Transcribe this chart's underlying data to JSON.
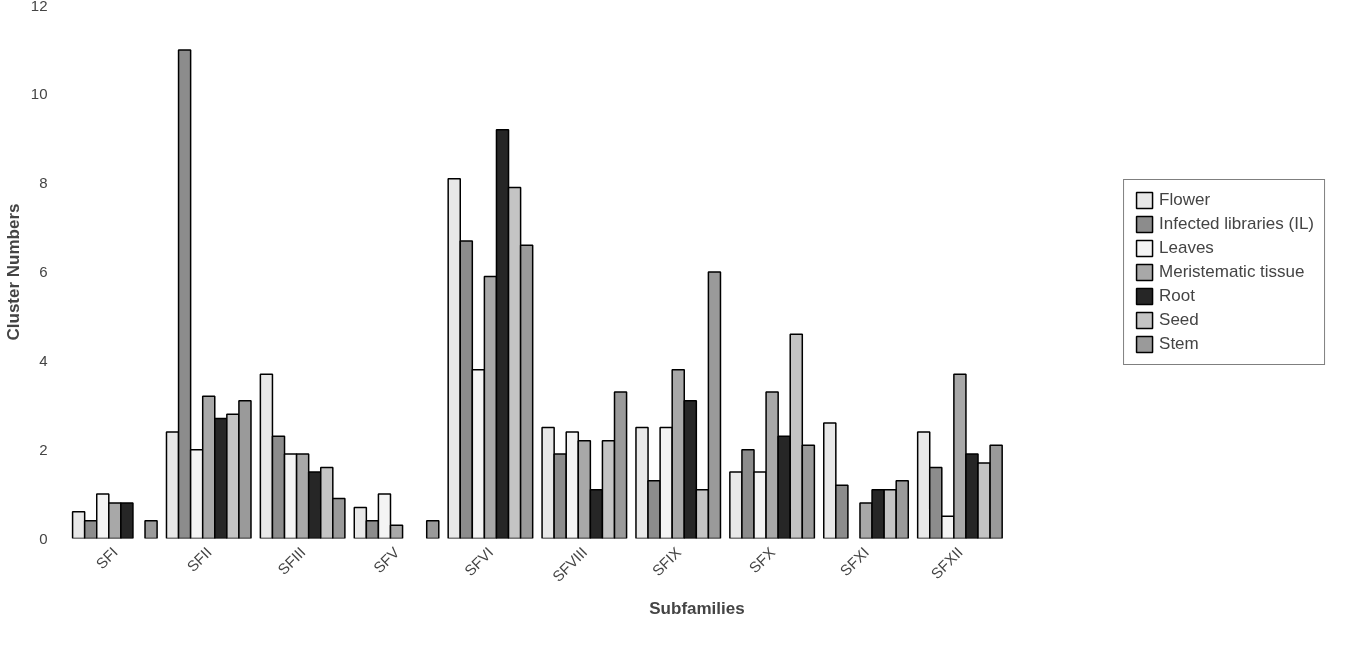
{
  "chart_data": {
    "type": "bar",
    "xlabel": "Subfamilies",
    "ylabel": "Cluster Numbers",
    "categories": [
      "SFI",
      "SFII",
      "SFIII",
      "SFV",
      "SFVI",
      "SFVIII",
      "SFIX",
      "SFX",
      "SFXI",
      "SFXII"
    ],
    "series": [
      {
        "name": "Flower",
        "color": "#e8e8e8",
        "values": [
          0.6,
          2.4,
          3.7,
          0.7,
          8.1,
          2.5,
          2.5,
          1.5,
          2.6,
          2.4
        ]
      },
      {
        "name": "Infected libraries (IL)",
        "color": "#8c8c8c",
        "values": [
          0.4,
          11.0,
          2.3,
          0.4,
          6.7,
          1.9,
          1.3,
          2.0,
          1.2,
          1.6
        ]
      },
      {
        "name": "Leaves",
        "color": "#f4f4f4",
        "values": [
          1.0,
          2.0,
          1.9,
          1.0,
          3.8,
          2.4,
          2.5,
          1.5,
          null,
          0.5
        ]
      },
      {
        "name": "Meristematic tissue",
        "color": "#a8a8a8",
        "values": [
          0.8,
          3.2,
          1.9,
          0.3,
          5.9,
          2.2,
          3.8,
          3.3,
          0.8,
          3.7
        ]
      },
      {
        "name": "Root",
        "color": "#262626",
        "values": [
          0.8,
          2.7,
          1.5,
          null,
          9.2,
          1.1,
          3.1,
          2.3,
          1.1,
          1.9
        ]
      },
      {
        "name": "Seed",
        "color": "#c4c4c4",
        "values": [
          null,
          2.8,
          1.6,
          null,
          7.9,
          2.2,
          1.1,
          4.6,
          1.1,
          1.7
        ]
      },
      {
        "name": "Stem",
        "color": "#9a9a9a",
        "values": [
          0.4,
          3.1,
          0.9,
          0.4,
          6.6,
          3.3,
          6.0,
          2.1,
          1.3,
          2.1
        ]
      }
    ],
    "ylim": [
      0,
      12
    ],
    "yticks": [
      0,
      2,
      4,
      6,
      8,
      10,
      12
    ],
    "grid": false,
    "legend": "right"
  }
}
